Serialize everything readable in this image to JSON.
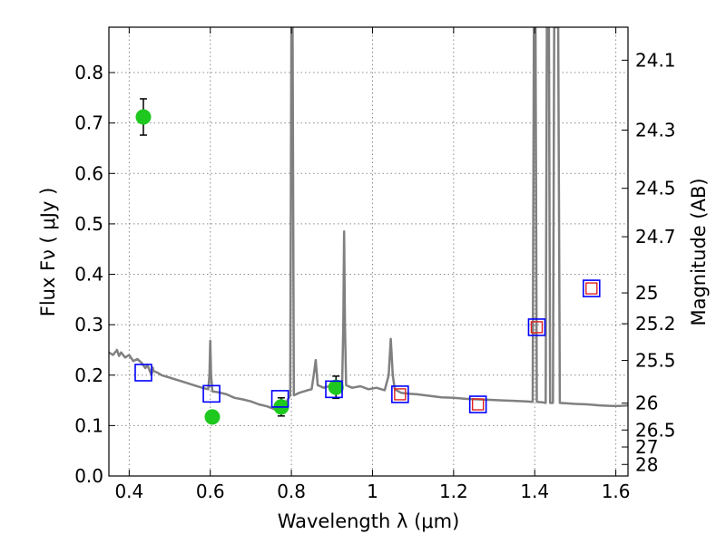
{
  "chart_data": {
    "type": "scatter",
    "xlabel": "Wavelength λ (μm)",
    "ylabel": "Flux Fν ( μJy )",
    "y2label": "Magnitude (AB)",
    "xlim": [
      0.35,
      1.63
    ],
    "ylim": [
      0.0,
      0.89
    ],
    "grid": true,
    "x_ticks": [
      0.4,
      0.6,
      0.8,
      1.0,
      1.2,
      1.4,
      1.6
    ],
    "x_tick_labels": [
      "0.4",
      "0.6",
      "0.8",
      "1",
      "1.2",
      "1.4",
      "1.6"
    ],
    "y_ticks": [
      0.0,
      0.1,
      0.2,
      0.3,
      0.4,
      0.5,
      0.6,
      0.7,
      0.8
    ],
    "y_tick_labels": [
      "0.0",
      "0.1",
      "0.2",
      "0.3",
      "0.4",
      "0.5",
      "0.6",
      "0.7",
      "0.8"
    ],
    "mag_ticks": [
      {
        "label": "24.1",
        "flux": 0.8246
      },
      {
        "label": "24.3",
        "flux": 0.6859
      },
      {
        "label": "24.5",
        "flux": 0.5705
      },
      {
        "label": "24.7",
        "flux": 0.4745
      },
      {
        "label": "25",
        "flux": 0.3631
      },
      {
        "label": "25.2",
        "flux": 0.302
      },
      {
        "label": "25.5",
        "flux": 0.2291
      },
      {
        "label": "26",
        "flux": 0.1445
      },
      {
        "label": "26.5",
        "flux": 0.0912
      },
      {
        "label": "27",
        "flux": 0.0575
      },
      {
        "label": "28",
        "flux": 0.0229
      }
    ],
    "series": [
      {
        "type": "line",
        "color": "#808080",
        "points": [
          [
            0.35,
            0.245
          ],
          [
            0.36,
            0.24
          ],
          [
            0.37,
            0.25
          ],
          [
            0.375,
            0.238
          ],
          [
            0.38,
            0.245
          ],
          [
            0.39,
            0.235
          ],
          [
            0.4,
            0.24
          ],
          [
            0.41,
            0.228
          ],
          [
            0.42,
            0.232
          ],
          [
            0.43,
            0.225
          ],
          [
            0.44,
            0.214
          ],
          [
            0.445,
            0.22
          ],
          [
            0.45,
            0.21
          ],
          [
            0.455,
            0.2
          ],
          [
            0.458,
            0.215
          ],
          [
            0.46,
            0.208
          ],
          [
            0.47,
            0.205
          ],
          [
            0.48,
            0.2
          ],
          [
            0.5,
            0.195
          ],
          [
            0.52,
            0.19
          ],
          [
            0.54,
            0.185
          ],
          [
            0.56,
            0.18
          ],
          [
            0.58,
            0.175
          ],
          [
            0.595,
            0.172
          ],
          [
            0.598,
            0.2
          ],
          [
            0.6,
            0.268
          ],
          [
            0.602,
            0.2
          ],
          [
            0.605,
            0.168
          ],
          [
            0.62,
            0.166
          ],
          [
            0.64,
            0.162
          ],
          [
            0.66,
            0.155
          ],
          [
            0.68,
            0.152
          ],
          [
            0.7,
            0.148
          ],
          [
            0.72,
            0.142
          ],
          [
            0.74,
            0.138
          ],
          [
            0.76,
            0.132
          ],
          [
            0.78,
            0.138
          ],
          [
            0.79,
            0.15
          ],
          [
            0.797,
            0.16
          ],
          [
            0.8,
            0.89
          ],
          [
            0.803,
            0.89
          ],
          [
            0.806,
            0.16
          ],
          [
            0.82,
            0.165
          ],
          [
            0.84,
            0.17
          ],
          [
            0.85,
            0.172
          ],
          [
            0.855,
            0.2
          ],
          [
            0.86,
            0.23
          ],
          [
            0.865,
            0.18
          ],
          [
            0.88,
            0.175
          ],
          [
            0.9,
            0.18
          ],
          [
            0.91,
            0.19
          ],
          [
            0.92,
            0.175
          ],
          [
            0.925,
            0.18
          ],
          [
            0.928,
            0.3
          ],
          [
            0.93,
            0.485
          ],
          [
            0.932,
            0.3
          ],
          [
            0.935,
            0.18
          ],
          [
            0.95,
            0.175
          ],
          [
            0.97,
            0.178
          ],
          [
            0.99,
            0.172
          ],
          [
            1.01,
            0.175
          ],
          [
            1.03,
            0.17
          ],
          [
            1.04,
            0.2
          ],
          [
            1.045,
            0.272
          ],
          [
            1.05,
            0.2
          ],
          [
            1.055,
            0.172
          ],
          [
            1.07,
            0.165
          ],
          [
            1.09,
            0.163
          ],
          [
            1.11,
            0.162
          ],
          [
            1.13,
            0.16
          ],
          [
            1.15,
            0.158
          ],
          [
            1.17,
            0.156
          ],
          [
            1.2,
            0.155
          ],
          [
            1.23,
            0.153
          ],
          [
            1.26,
            0.152
          ],
          [
            1.29,
            0.151
          ],
          [
            1.32,
            0.15
          ],
          [
            1.35,
            0.149
          ],
          [
            1.38,
            0.148
          ],
          [
            1.395,
            0.147
          ],
          [
            1.398,
            0.89
          ],
          [
            1.402,
            0.89
          ],
          [
            1.405,
            0.147
          ],
          [
            1.42,
            0.146
          ],
          [
            1.427,
            0.145
          ],
          [
            1.43,
            0.89
          ],
          [
            1.435,
            0.89
          ],
          [
            1.438,
            0.145
          ],
          [
            1.445,
            0.145
          ],
          [
            1.448,
            0.89
          ],
          [
            1.458,
            0.89
          ],
          [
            1.462,
            0.145
          ],
          [
            1.48,
            0.144
          ],
          [
            1.5,
            0.143
          ],
          [
            1.53,
            0.142
          ],
          [
            1.56,
            0.14
          ],
          [
            1.59,
            0.139
          ],
          [
            1.61,
            0.139
          ],
          [
            1.63,
            0.14
          ]
        ]
      },
      {
        "type": "scatter",
        "marker": "circle",
        "color": "#1ec81e",
        "points": [
          {
            "x": 0.435,
            "y": 0.712,
            "err": 0.036
          },
          {
            "x": 0.605,
            "y": 0.117,
            "err": 0.012
          },
          {
            "x": 0.775,
            "y": 0.137,
            "err": 0.018
          },
          {
            "x": 0.91,
            "y": 0.176,
            "err": 0.022
          }
        ]
      },
      {
        "type": "scatter",
        "marker": "open-square",
        "color": "#0000ff",
        "points": [
          {
            "x": 0.435,
            "y": 0.205
          },
          {
            "x": 0.603,
            "y": 0.163
          },
          {
            "x": 0.772,
            "y": 0.153
          },
          {
            "x": 0.905,
            "y": 0.172
          },
          {
            "x": 1.068,
            "y": 0.162
          },
          {
            "x": 1.26,
            "y": 0.142
          },
          {
            "x": 1.405,
            "y": 0.295
          },
          {
            "x": 1.54,
            "y": 0.372
          }
        ]
      },
      {
        "type": "scatter",
        "marker": "open-square-small",
        "color": "#e02020",
        "points": [
          {
            "x": 1.068,
            "y": 0.162
          },
          {
            "x": 1.26,
            "y": 0.142
          },
          {
            "x": 1.405,
            "y": 0.295
          },
          {
            "x": 1.54,
            "y": 0.372
          }
        ]
      }
    ]
  }
}
